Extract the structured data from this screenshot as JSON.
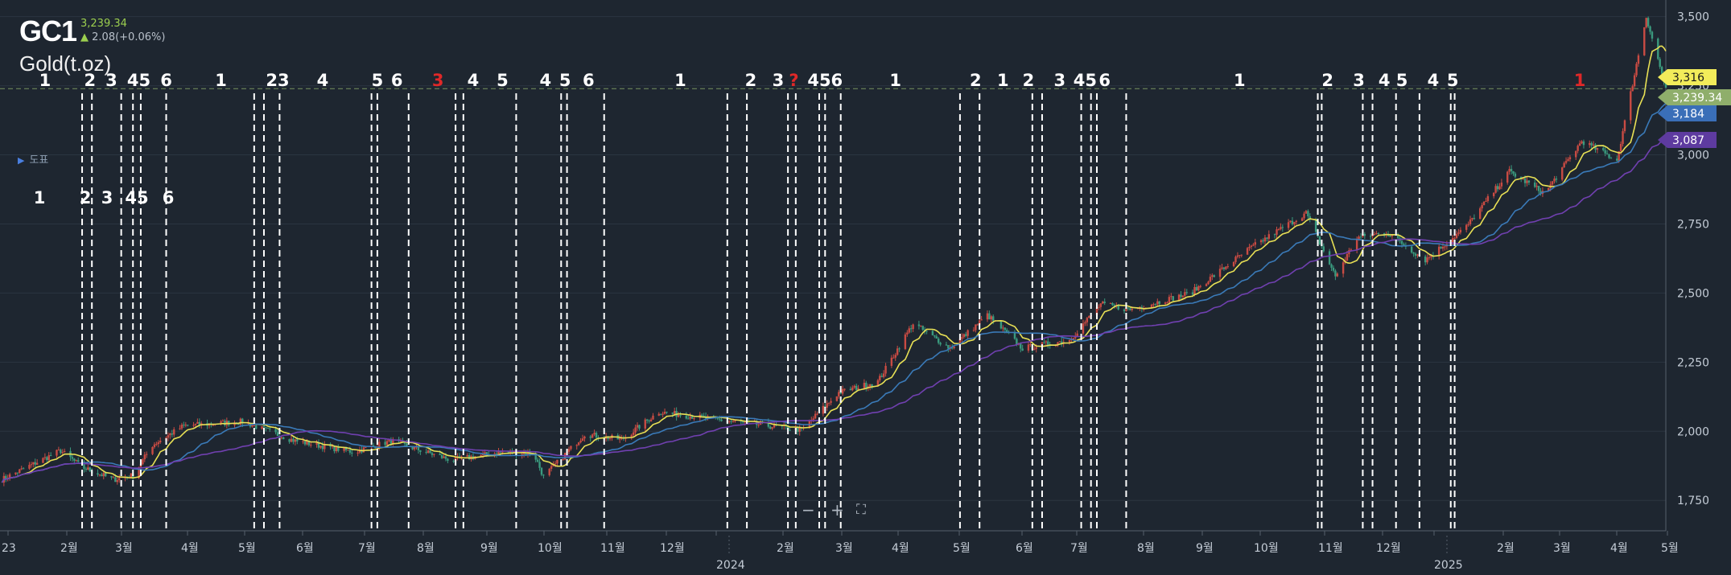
{
  "header": {
    "symbol": "GC1",
    "price": "3,239.34",
    "change": "2.08(+0.06%)",
    "name": "Gold(t.oz)",
    "arrow_icon": "up-arrow-icon",
    "change_color": "#9ccf4f"
  },
  "toolbar": {
    "drawings_label": "도표"
  },
  "zoom_controls": {
    "minus": "−",
    "plus": "+",
    "fullscreen": "⛶"
  },
  "chart_data": {
    "type": "candlestick",
    "y_ticks": [
      1750,
      2000,
      2250,
      2500,
      2750,
      3000,
      3250,
      3500
    ],
    "y_tick_labels": [
      "1,750",
      "2,000",
      "2,250",
      "2,500",
      "2,750",
      "3,000",
      "3,250",
      "3,500"
    ],
    "ylim": [
      1640,
      3560
    ],
    "x_tick_labels": [
      "23",
      "2월",
      "3월",
      "4월",
      "5월",
      "6월",
      "7월",
      "8월",
      "9월",
      "10월",
      "11월",
      "12월",
      "2024",
      "2월",
      "3월",
      "4월",
      "5월",
      "6월",
      "7월",
      "8월",
      "9월",
      "10월",
      "11월",
      "12월",
      "2025",
      "2월",
      "3월",
      "4월",
      "5월"
    ],
    "x_range": [
      "2023-01-01",
      "2025-05-02"
    ],
    "current_price_line": 3239.34,
    "price_tags": [
      {
        "label": "3,316",
        "value": 3316,
        "color": "#f2ec5a"
      },
      {
        "label": "3,239.34",
        "value": 3239.34,
        "color": "#8fae6b"
      },
      {
        "label": "3,184",
        "value": 3184,
        "color": "#3a6fb8"
      },
      {
        "label": "3,087",
        "value": 3087,
        "color": "#5e3ba0"
      }
    ],
    "moving_averages": [
      {
        "color": "#e8e055",
        "current": 3316
      },
      {
        "color": "#3a7ab8",
        "current": 3184
      },
      {
        "color": "#7040b0",
        "current": 3087
      }
    ],
    "anchors": [
      {
        "date": "2023-01-01",
        "value": 1822
      },
      {
        "date": "2023-02-01",
        "value": 1930
      },
      {
        "date": "2023-02-12",
        "value": 1870
      },
      {
        "date": "2023-02-28",
        "value": 1825
      },
      {
        "date": "2023-03-10",
        "value": 1840
      },
      {
        "date": "2023-03-20",
        "value": 1950
      },
      {
        "date": "2023-04-05",
        "value": 2020
      },
      {
        "date": "2023-05-05",
        "value": 2035
      },
      {
        "date": "2023-06-01",
        "value": 1965
      },
      {
        "date": "2023-07-01",
        "value": 1925
      },
      {
        "date": "2023-07-20",
        "value": 1965
      },
      {
        "date": "2023-08-20",
        "value": 1895
      },
      {
        "date": "2023-09-15",
        "value": 1925
      },
      {
        "date": "2023-10-01",
        "value": 1920
      },
      {
        "date": "2023-10-06",
        "value": 1835
      },
      {
        "date": "2023-10-27",
        "value": 1990
      },
      {
        "date": "2023-11-15",
        "value": 1970
      },
      {
        "date": "2023-12-04",
        "value": 2070
      },
      {
        "date": "2024-01-05",
        "value": 2040
      },
      {
        "date": "2024-02-15",
        "value": 2005
      },
      {
        "date": "2024-03-05",
        "value": 2140
      },
      {
        "date": "2024-03-25",
        "value": 2180
      },
      {
        "date": "2024-04-12",
        "value": 2390
      },
      {
        "date": "2024-05-01",
        "value": 2300
      },
      {
        "date": "2024-05-20",
        "value": 2420
      },
      {
        "date": "2024-06-07",
        "value": 2300
      },
      {
        "date": "2024-07-01",
        "value": 2330
      },
      {
        "date": "2024-07-17",
        "value": 2460
      },
      {
        "date": "2024-08-01",
        "value": 2440
      },
      {
        "date": "2024-09-01",
        "value": 2500
      },
      {
        "date": "2024-10-01",
        "value": 2660
      },
      {
        "date": "2024-10-30",
        "value": 2790
      },
      {
        "date": "2024-11-14",
        "value": 2560
      },
      {
        "date": "2024-11-25",
        "value": 2700
      },
      {
        "date": "2024-12-10",
        "value": 2720
      },
      {
        "date": "2024-12-30",
        "value": 2620
      },
      {
        "date": "2025-01-20",
        "value": 2740
      },
      {
        "date": "2025-02-11",
        "value": 2940
      },
      {
        "date": "2025-03-01",
        "value": 2860
      },
      {
        "date": "2025-03-20",
        "value": 3050
      },
      {
        "date": "2025-04-07",
        "value": 2980
      },
      {
        "date": "2025-04-22",
        "value": 3500
      },
      {
        "date": "2025-05-02",
        "value": 3240
      }
    ],
    "wave_labels": [
      {
        "label": "1",
        "date": "2023-01-24",
        "color": "#ffffff"
      },
      {
        "label": "2",
        "date": "2023-02-16",
        "color": "#ffffff"
      },
      {
        "label": "3",
        "date": "2023-02-27",
        "color": "#ffffff"
      },
      {
        "label": "45",
        "date": "2023-03-13",
        "color": "#ffffff"
      },
      {
        "label": "6",
        "date": "2023-03-27",
        "color": "#ffffff"
      },
      {
        "label": "1",
        "date": "2023-04-24",
        "color": "#ffffff"
      },
      {
        "label": "2",
        "date": "2023-05-20",
        "color": "#ffffff"
      },
      {
        "label": "3",
        "date": "2023-05-26",
        "color": "#ffffff"
      },
      {
        "label": "4",
        "date": "2023-06-15",
        "color": "#ffffff"
      },
      {
        "label": "5",
        "date": "2023-07-13",
        "color": "#ffffff"
      },
      {
        "label": "6",
        "date": "2023-07-23",
        "color": "#ffffff"
      },
      {
        "label": "3",
        "date": "2023-08-13",
        "color": "#e02828"
      },
      {
        "label": "4",
        "date": "2023-08-31",
        "color": "#ffffff"
      },
      {
        "label": "5",
        "date": "2023-09-15",
        "color": "#ffffff"
      },
      {
        "label": "4",
        "date": "2023-10-07",
        "color": "#ffffff"
      },
      {
        "label": "5",
        "date": "2023-10-17",
        "color": "#ffffff"
      },
      {
        "label": "6",
        "date": "2023-10-29",
        "color": "#ffffff"
      },
      {
        "label": "1",
        "date": "2023-12-15",
        "color": "#ffffff"
      },
      {
        "label": "2",
        "date": "2024-01-20",
        "color": "#ffffff"
      },
      {
        "label": "3",
        "date": "2024-02-03",
        "color": "#ffffff"
      },
      {
        "label": "?",
        "date": "2024-02-11",
        "color": "#e02828"
      },
      {
        "label": "45",
        "date": "2024-02-24",
        "color": "#ffffff"
      },
      {
        "label": "6",
        "date": "2024-03-04",
        "color": "#ffffff"
      },
      {
        "label": "1",
        "date": "2024-04-03",
        "color": "#ffffff"
      },
      {
        "label": "2",
        "date": "2024-05-14",
        "color": "#ffffff"
      },
      {
        "label": "1",
        "date": "2024-05-28",
        "color": "#ffffff"
      },
      {
        "label": "2",
        "date": "2024-06-10",
        "color": "#ffffff"
      },
      {
        "label": "3",
        "date": "2024-06-26",
        "color": "#ffffff"
      },
      {
        "label": "45",
        "date": "2024-07-09",
        "color": "#ffffff"
      },
      {
        "label": "6",
        "date": "2024-07-19",
        "color": "#ffffff"
      },
      {
        "label": "1",
        "date": "2024-09-26",
        "color": "#ffffff"
      },
      {
        "label": "2",
        "date": "2024-11-10",
        "color": "#ffffff"
      },
      {
        "label": "3",
        "date": "2024-11-26",
        "color": "#ffffff"
      },
      {
        "label": "4",
        "date": "2024-12-09",
        "color": "#ffffff"
      },
      {
        "label": "5",
        "date": "2024-12-18",
        "color": "#ffffff"
      },
      {
        "label": "4",
        "date": "2025-01-03",
        "color": "#ffffff"
      },
      {
        "label": "5",
        "date": "2025-01-13",
        "color": "#ffffff"
      },
      {
        "label": "1",
        "date": "2025-03-19",
        "color": "#e02828"
      }
    ],
    "vertical_lines": [
      "2023-02-12",
      "2023-02-17",
      "2023-03-04",
      "2023-03-10",
      "2023-03-14",
      "2023-03-27",
      "2023-05-11",
      "2023-05-16",
      "2023-05-24",
      "2023-07-10",
      "2023-07-13",
      "2023-07-29",
      "2023-08-22",
      "2023-08-26",
      "2023-09-22",
      "2023-10-15",
      "2023-10-18",
      "2023-11-06",
      "2024-01-08",
      "2024-01-18",
      "2024-02-08",
      "2024-02-12",
      "2024-02-24",
      "2024-02-27",
      "2024-03-06",
      "2024-05-06",
      "2024-05-16",
      "2024-06-12",
      "2024-06-17",
      "2024-07-07",
      "2024-07-12",
      "2024-07-15",
      "2024-07-30",
      "2024-11-05",
      "2024-11-07",
      "2024-11-28",
      "2024-12-03",
      "2024-12-15",
      "2024-12-27",
      "2025-01-12",
      "2025-01-14"
    ],
    "bottom_wave_labels": [
      {
        "label": "1",
        "x_date": "2022-12-20"
      },
      {
        "label": "2",
        "x_date": "2023-02-15"
      },
      {
        "label": "3",
        "x_date": "2023-02-27"
      },
      {
        "label": "45",
        "x_date": "2023-03-13"
      },
      {
        "label": "6",
        "x_date": "2023-03-27"
      }
    ]
  }
}
